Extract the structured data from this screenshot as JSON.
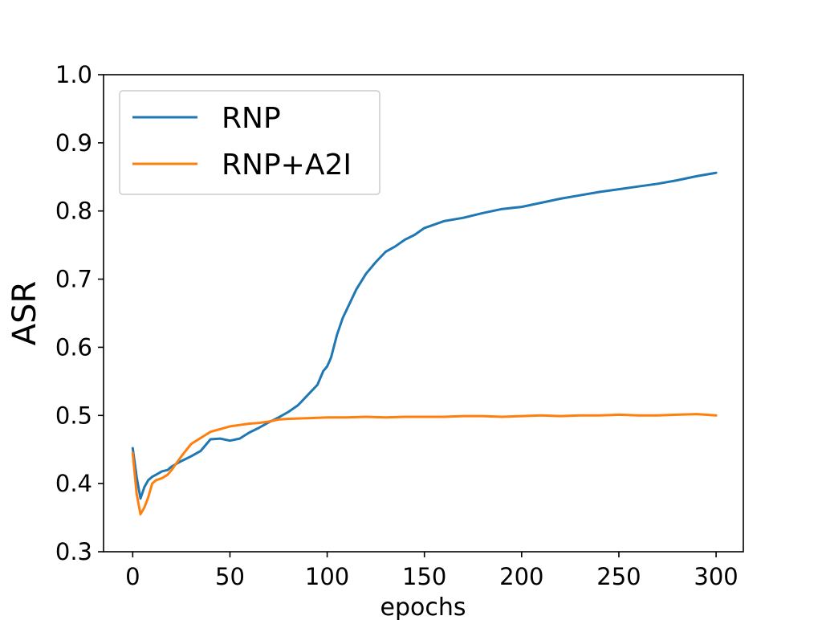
{
  "chart_data": {
    "type": "line",
    "title": "",
    "xlabel": "epochs",
    "ylabel": "ASR",
    "xlim": [
      -15,
      314
    ],
    "ylim": [
      0.3,
      1.0
    ],
    "x_ticks": [
      0,
      50,
      100,
      150,
      200,
      250,
      300
    ],
    "y_ticks": [
      0.3,
      0.4,
      0.5,
      0.6,
      0.7,
      0.8,
      0.9,
      1.0
    ],
    "grid": false,
    "legend_position": "top-left",
    "series": [
      {
        "name": "RNP",
        "color": "#1f77b4",
        "x": [
          0,
          2,
          4,
          6,
          8,
          10,
          12,
          15,
          18,
          20,
          25,
          30,
          35,
          40,
          45,
          50,
          55,
          60,
          65,
          70,
          75,
          80,
          85,
          90,
          95,
          98,
          100,
          102,
          105,
          108,
          110,
          115,
          120,
          125,
          130,
          135,
          140,
          145,
          150,
          155,
          160,
          170,
          180,
          190,
          200,
          210,
          220,
          230,
          240,
          250,
          260,
          270,
          280,
          290,
          300
        ],
        "y": [
          0.452,
          0.41,
          0.378,
          0.395,
          0.405,
          0.41,
          0.413,
          0.418,
          0.42,
          0.425,
          0.433,
          0.44,
          0.448,
          0.465,
          0.466,
          0.463,
          0.466,
          0.475,
          0.482,
          0.49,
          0.497,
          0.505,
          0.515,
          0.53,
          0.545,
          0.565,
          0.572,
          0.585,
          0.618,
          0.643,
          0.655,
          0.685,
          0.708,
          0.725,
          0.74,
          0.748,
          0.758,
          0.765,
          0.775,
          0.78,
          0.785,
          0.79,
          0.797,
          0.803,
          0.806,
          0.812,
          0.818,
          0.823,
          0.828,
          0.832,
          0.836,
          0.84,
          0.845,
          0.851,
          0.856
        ]
      },
      {
        "name": "RNP+A2I",
        "color": "#ff7f0e",
        "x": [
          0,
          2,
          4,
          6,
          8,
          10,
          12,
          15,
          18,
          20,
          25,
          30,
          35,
          40,
          45,
          50,
          55,
          60,
          65,
          70,
          75,
          80,
          90,
          100,
          110,
          120,
          130,
          140,
          150,
          160,
          170,
          180,
          190,
          200,
          210,
          220,
          230,
          240,
          250,
          260,
          270,
          280,
          290,
          300
        ],
        "y": [
          0.445,
          0.385,
          0.355,
          0.365,
          0.38,
          0.4,
          0.405,
          0.408,
          0.413,
          0.42,
          0.44,
          0.458,
          0.467,
          0.476,
          0.48,
          0.484,
          0.486,
          0.488,
          0.489,
          0.491,
          0.494,
          0.495,
          0.496,
          0.497,
          0.497,
          0.498,
          0.497,
          0.498,
          0.498,
          0.498,
          0.499,
          0.499,
          0.498,
          0.499,
          0.5,
          0.499,
          0.5,
          0.5,
          0.501,
          0.5,
          0.5,
          0.501,
          0.502,
          0.5
        ]
      }
    ]
  }
}
